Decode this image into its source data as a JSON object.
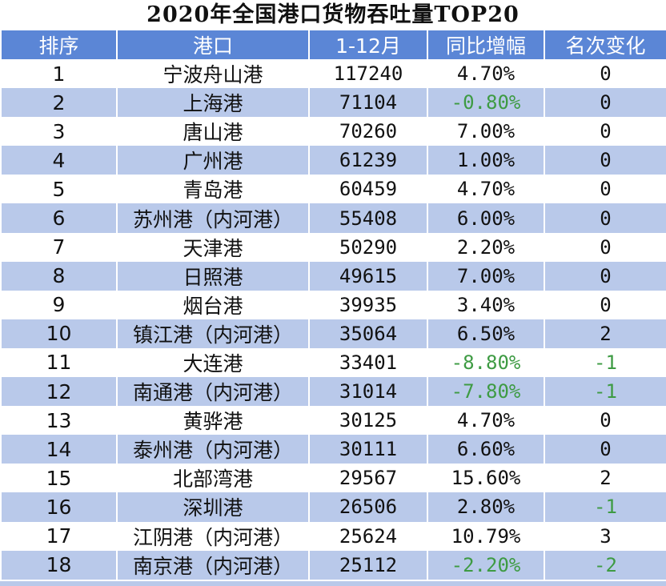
{
  "title": "2020年全国港口货物吞吐量TOP20",
  "columns": [
    "排序",
    "港口",
    "1-12月",
    "同比增幅",
    "名次变化"
  ],
  "rows": [
    {
      "rank": "1",
      "port": "宁波舟山港",
      "value": "117240",
      "yoy": "4.70%",
      "change": "0",
      "yoy_neg": false,
      "change_neg": false
    },
    {
      "rank": "2",
      "port": "上海港",
      "value": "71104",
      "yoy": "-0.80%",
      "change": "0",
      "yoy_neg": true,
      "change_neg": false
    },
    {
      "rank": "3",
      "port": "唐山港",
      "value": "70260",
      "yoy": "7.00%",
      "change": "0",
      "yoy_neg": false,
      "change_neg": false
    },
    {
      "rank": "4",
      "port": "广州港",
      "value": "61239",
      "yoy": "1.00%",
      "change": "0",
      "yoy_neg": false,
      "change_neg": false
    },
    {
      "rank": "5",
      "port": "青岛港",
      "value": "60459",
      "yoy": "4.70%",
      "change": "0",
      "yoy_neg": false,
      "change_neg": false
    },
    {
      "rank": "6",
      "port": "苏州港（内河港）",
      "value": "55408",
      "yoy": "6.00%",
      "change": "0",
      "yoy_neg": false,
      "change_neg": false
    },
    {
      "rank": "7",
      "port": "天津港",
      "value": "50290",
      "yoy": "2.20%",
      "change": "0",
      "yoy_neg": false,
      "change_neg": false
    },
    {
      "rank": "8",
      "port": "日照港",
      "value": "49615",
      "yoy": "7.00%",
      "change": "0",
      "yoy_neg": false,
      "change_neg": false
    },
    {
      "rank": "9",
      "port": "烟台港",
      "value": "39935",
      "yoy": "3.40%",
      "change": "0",
      "yoy_neg": false,
      "change_neg": false
    },
    {
      "rank": "10",
      "port": "镇江港（内河港）",
      "value": "35064",
      "yoy": "6.50%",
      "change": "2",
      "yoy_neg": false,
      "change_neg": false
    },
    {
      "rank": "11",
      "port": "大连港",
      "value": "33401",
      "yoy": "-8.80%",
      "change": "-1",
      "yoy_neg": true,
      "change_neg": true
    },
    {
      "rank": "12",
      "port": "南通港（内河港）",
      "value": "31014",
      "yoy": "-7.80%",
      "change": "-1",
      "yoy_neg": true,
      "change_neg": true
    },
    {
      "rank": "13",
      "port": "黄骅港",
      "value": "30125",
      "yoy": "4.70%",
      "change": "0",
      "yoy_neg": false,
      "change_neg": false
    },
    {
      "rank": "14",
      "port": "泰州港（内河港）",
      "value": "30111",
      "yoy": "6.60%",
      "change": "0",
      "yoy_neg": false,
      "change_neg": false
    },
    {
      "rank": "15",
      "port": "北部湾港",
      "value": "29567",
      "yoy": "15.60%",
      "change": "2",
      "yoy_neg": false,
      "change_neg": false
    },
    {
      "rank": "16",
      "port": "深圳港",
      "value": "26506",
      "yoy": "2.80%",
      "change": "-1",
      "yoy_neg": false,
      "change_neg": true
    },
    {
      "rank": "17",
      "port": "江阴港（内河港）",
      "value": "25624",
      "yoy": "10.79%",
      "change": "3",
      "yoy_neg": false,
      "change_neg": false
    },
    {
      "rank": "18",
      "port": "南京港（内河港）",
      "value": "25112",
      "yoy": "-2.20%",
      "change": "-2",
      "yoy_neg": true,
      "change_neg": true
    }
  ],
  "colors": {
    "header_bg": "#5b86d6",
    "stripe_bg": "#b9c9ea",
    "negative_text": "#3e9b43"
  }
}
